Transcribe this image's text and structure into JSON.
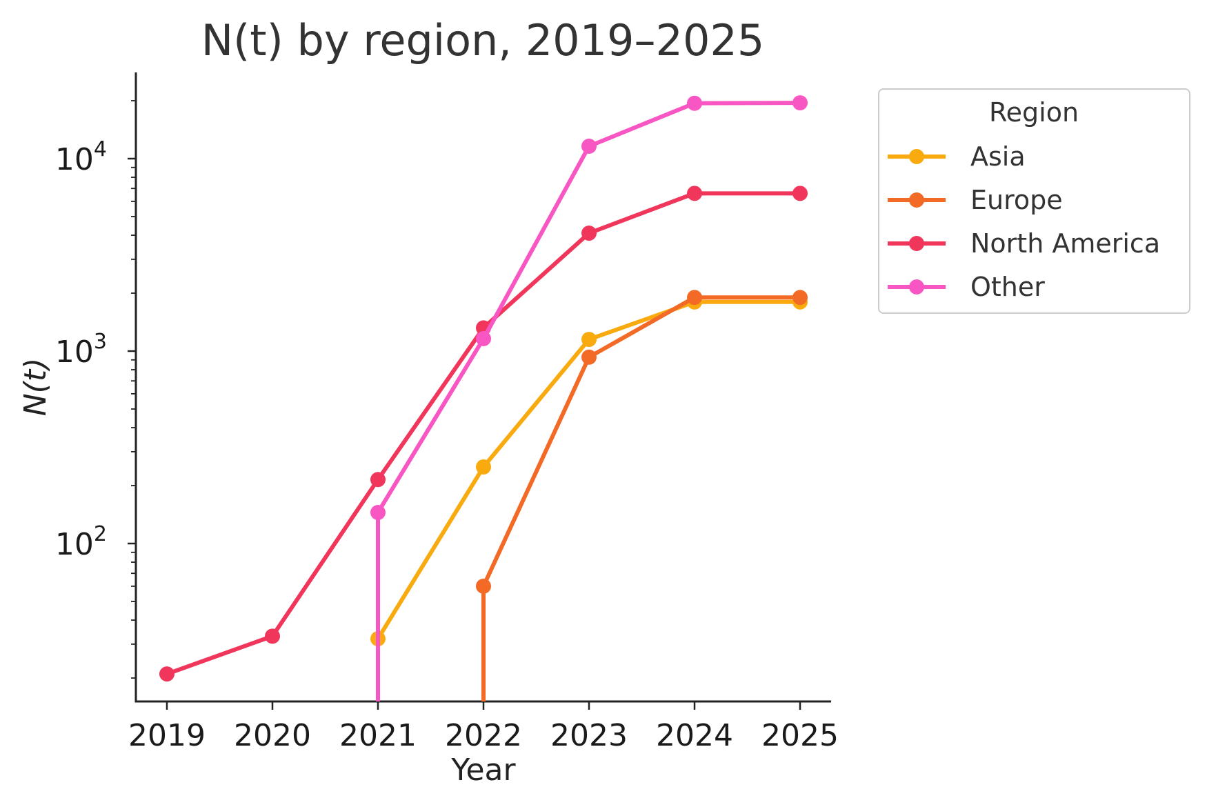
{
  "chart_data": {
    "type": "line",
    "title": "N(t) by region, 2019–2025",
    "xlabel": "Year",
    "ylabel": "N(t)",
    "yscale": "log",
    "ylim": [
      16,
      28000
    ],
    "categories": [
      "2019",
      "2020",
      "2021",
      "2022",
      "2023",
      "2024",
      "2025"
    ],
    "y_ticks": [
      {
        "value": 100,
        "base": "10",
        "exp": "2"
      },
      {
        "value": 1000,
        "base": "10",
        "exp": "3"
      },
      {
        "value": 10000,
        "base": "10",
        "exp": "4"
      }
    ],
    "legend": {
      "title": "Region",
      "position": "outside right"
    },
    "grid": false,
    "series": [
      {
        "name": "Asia",
        "color": "#F9AA0E",
        "values": [
          null,
          null,
          32,
          250,
          1150,
          1800,
          1800
        ]
      },
      {
        "name": "Europe",
        "color": "#F26A26",
        "values": [
          null,
          null,
          null,
          60,
          930,
          1900,
          1900
        ]
      },
      {
        "name": "North America",
        "color": "#F0365A",
        "values": [
          21,
          33,
          215,
          1320,
          4100,
          6600,
          6600
        ]
      },
      {
        "name": "Other",
        "color": "#F857C3",
        "values": [
          null,
          null,
          145,
          1160,
          11600,
          19400,
          19500
        ]
      }
    ],
    "drop_lines": [
      {
        "series": "Other",
        "category": "2021"
      },
      {
        "series": "Europe",
        "category": "2022"
      }
    ]
  }
}
